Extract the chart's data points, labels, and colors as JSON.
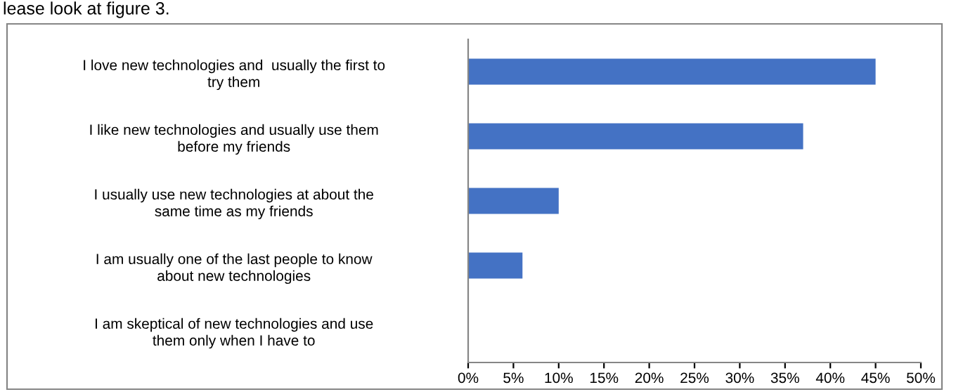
{
  "chart_data": {
    "type": "bar",
    "orientation": "horizontal",
    "categories": [
      "I love new technologies and  usually the first to\ntry them",
      "I like new technologies and usually use them\nbefore my friends",
      "I usually use new technologies at about the\nsame time as my friends",
      "I am usually one of the last people to know\nabout new technologies",
      "I am skeptical of new technologies and use\nthem only when I have to"
    ],
    "values": [
      45,
      37,
      10,
      6,
      0
    ],
    "color": "#4472c4",
    "xlim": [
      0,
      50
    ],
    "xticks": [
      {
        "value": 0,
        "label": "0%"
      },
      {
        "value": 5,
        "label": "5%"
      },
      {
        "value": 10,
        "label": "10%"
      },
      {
        "value": 15,
        "label": "15%"
      },
      {
        "value": 20,
        "label": "20%"
      },
      {
        "value": 25,
        "label": "25%"
      },
      {
        "value": 30,
        "label": "30%"
      },
      {
        "value": 35,
        "label": "35%"
      },
      {
        "value": 40,
        "label": "40%"
      },
      {
        "value": 45,
        "label": "45%"
      },
      {
        "value": 50,
        "label": "50%"
      }
    ],
    "grid": false,
    "legend": false,
    "annotations": [
      "lease look at figure 3."
    ]
  }
}
